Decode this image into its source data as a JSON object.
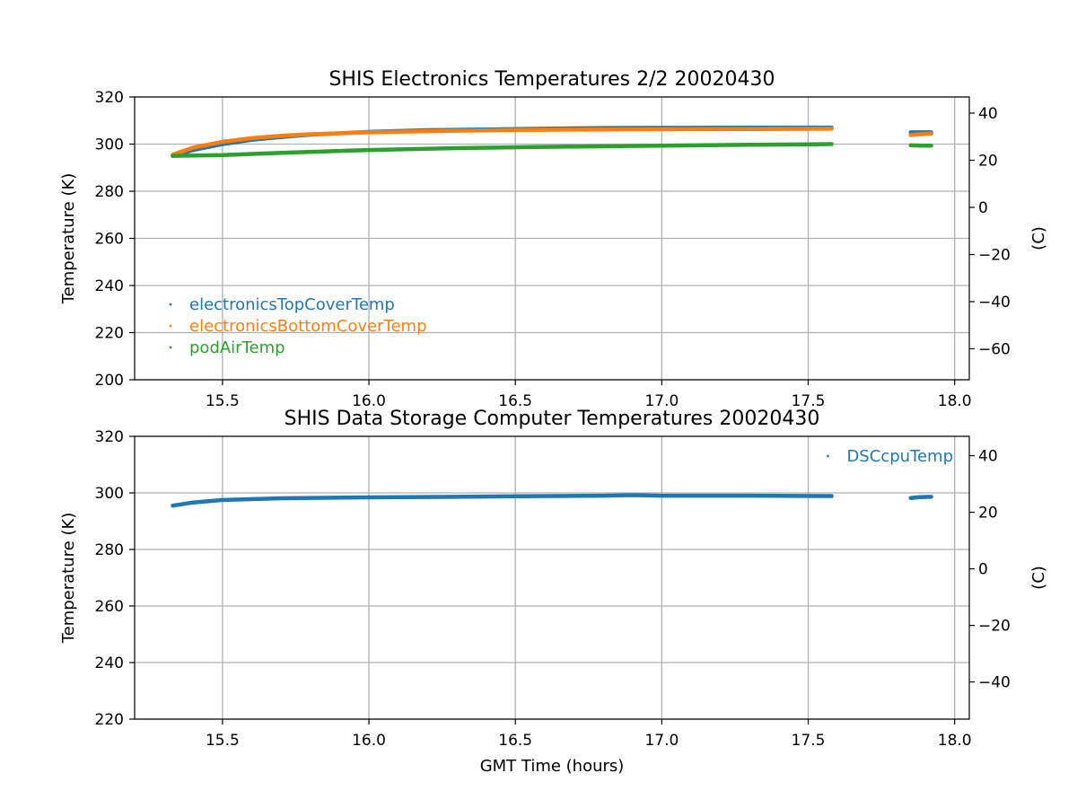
{
  "chart_data": [
    {
      "type": "scatter",
      "title": "SHIS Electronics Temperatures 2/2 20020430",
      "xlabel": "",
      "ylabel": "Temperature (K)",
      "ylabel_right": "(C)",
      "xlim": [
        15.2,
        18.05
      ],
      "ylim": [
        200,
        320
      ],
      "xticks": [
        15.5,
        16.0,
        16.5,
        17.0,
        17.5,
        18.0
      ],
      "xtick_labels": [
        "15.5",
        "16.0",
        "16.5",
        "17.0",
        "17.5",
        "18.0"
      ],
      "yticks": [
        200,
        220,
        240,
        260,
        280,
        300,
        320
      ],
      "ytick_labels": [
        "200",
        "220",
        "240",
        "260",
        "280",
        "300",
        "320"
      ],
      "yticks_right": [
        -60,
        -40,
        -20,
        0,
        20,
        40
      ],
      "ytick_labels_right": [
        "−60",
        "−40",
        "−20",
        "0",
        "20",
        "40"
      ],
      "grid": true,
      "legend_position": "lower-left",
      "series": [
        {
          "name": "electronicsTopCoverTemp",
          "color": "#1f77b4",
          "segments": [
            {
              "x": [
                15.33,
                15.4,
                15.5,
                15.6,
                15.7,
                15.8,
                16.0,
                16.2,
                16.5,
                16.8,
                17.0,
                17.3,
                17.58
              ],
              "y": [
                295,
                297.5,
                300,
                301.8,
                303,
                304,
                305.2,
                305.9,
                306.4,
                306.8,
                306.9,
                307,
                307
              ]
            },
            {
              "x": [
                17.85,
                17.88,
                17.92
              ],
              "y": [
                305,
                305,
                305
              ]
            }
          ]
        },
        {
          "name": "electronicsBottomCoverTemp",
          "color": "#ff7f0e",
          "segments": [
            {
              "x": [
                15.33,
                15.4,
                15.5,
                15.6,
                15.7,
                15.8,
                16.0,
                16.2,
                16.5,
                16.8,
                17.0,
                17.3,
                17.58
              ],
              "y": [
                295.5,
                298.5,
                301,
                302.5,
                303.5,
                304.2,
                305,
                305.5,
                306,
                306.2,
                306.3,
                306.4,
                306.5
              ]
            },
            {
              "x": [
                17.85,
                17.88,
                17.92
              ],
              "y": [
                303.8,
                304.2,
                304.5
              ]
            }
          ]
        },
        {
          "name": "podAirTemp",
          "color": "#2ca02c",
          "segments": [
            {
              "x": [
                15.33,
                15.5,
                15.7,
                16.0,
                16.3,
                16.6,
                17.0,
                17.3,
                17.58
              ],
              "y": [
                295,
                295.3,
                296.3,
                297.5,
                298.3,
                298.8,
                299.3,
                299.7,
                300
              ]
            },
            {
              "x": [
                17.85,
                17.88,
                17.92
              ],
              "y": [
                299.5,
                299.4,
                299.3
              ]
            }
          ]
        }
      ]
    },
    {
      "type": "scatter",
      "title": "SHIS Data Storage Computer Temperatures 20020430",
      "xlabel": "GMT Time (hours)",
      "ylabel": "Temperature (K)",
      "ylabel_right": "(C)",
      "xlim": [
        15.2,
        18.05
      ],
      "ylim": [
        220,
        320
      ],
      "xticks": [
        15.5,
        16.0,
        16.5,
        17.0,
        17.5,
        18.0
      ],
      "xtick_labels": [
        "15.5",
        "16.0",
        "16.5",
        "17.0",
        "17.5",
        "18.0"
      ],
      "yticks": [
        220,
        240,
        260,
        280,
        300,
        320
      ],
      "ytick_labels": [
        "220",
        "240",
        "260",
        "280",
        "300",
        "320"
      ],
      "yticks_right": [
        -40,
        -20,
        0,
        20,
        40
      ],
      "ytick_labels_right": [
        "−40",
        "−20",
        "0",
        "20",
        "40"
      ],
      "grid": true,
      "legend_position": "upper-right",
      "series": [
        {
          "name": "DSCcpuTemp",
          "color": "#1f77b4",
          "segments": [
            {
              "x": [
                15.33,
                15.4,
                15.5,
                15.7,
                16.0,
                16.3,
                16.5,
                16.8,
                16.9,
                17.0,
                17.3,
                17.58
              ],
              "y": [
                295.5,
                296.6,
                297.5,
                298.1,
                298.4,
                298.6,
                298.8,
                299,
                299.2,
                299,
                299,
                298.9
              ]
            },
            {
              "x": [
                17.85,
                17.88,
                17.92
              ],
              "y": [
                298.2,
                298.5,
                298.6
              ]
            }
          ]
        }
      ]
    }
  ]
}
